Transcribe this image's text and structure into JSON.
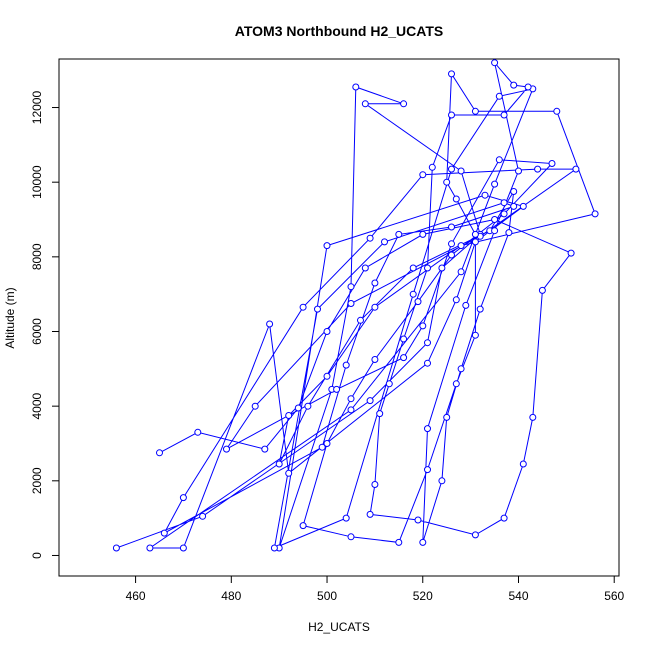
{
  "chart_data": {
    "type": "line",
    "title": "ATOM3 Northbound H2_UCATS",
    "xlabel": "H2_UCATS",
    "ylabel": "Altitude (m)",
    "xlim": [
      444,
      561
    ],
    "ylim": [
      -550,
      13300
    ],
    "xticks": [
      460,
      480,
      500,
      520,
      540,
      560
    ],
    "yticks": [
      0,
      2000,
      4000,
      6000,
      8000,
      10000,
      12000
    ],
    "grid": false,
    "legend": "none",
    "colors": {
      "series": "#0000ff",
      "frame": "#000000"
    },
    "series": [
      {
        "marker": "open-circle",
        "points": [
          [
            456,
            200
          ],
          [
            474,
            1050
          ],
          [
            509,
            4150
          ],
          [
            521,
            5700
          ],
          [
            524,
            7700
          ],
          [
            532,
            8600
          ],
          [
            528,
            10300
          ],
          [
            508,
            12100
          ],
          [
            516,
            12100
          ],
          [
            506,
            12550
          ],
          [
            505,
            7200
          ],
          [
            501,
            4450
          ],
          [
            490,
            200
          ],
          [
            500,
            8300
          ],
          [
            533,
            9650
          ],
          [
            541,
            9350
          ],
          [
            531,
            8400
          ],
          [
            527,
            6850
          ],
          [
            521,
            5150
          ],
          [
            492,
            2200
          ],
          [
            488,
            6200
          ],
          [
            470,
            200
          ],
          [
            463,
            200
          ],
          [
            505,
            3900
          ],
          [
            528,
            7600
          ],
          [
            535,
            9950
          ],
          [
            543,
            12500
          ],
          [
            536,
            12300
          ],
          [
            526,
            10350
          ],
          [
            518,
            7000
          ],
          [
            504,
            1000
          ],
          [
            489,
            200
          ],
          [
            498,
            6600
          ],
          [
            512,
            8400
          ],
          [
            537,
            9450
          ],
          [
            539,
            9350
          ],
          [
            526,
            8800
          ],
          [
            515,
            8600
          ],
          [
            510,
            7300
          ],
          [
            504,
            5100
          ],
          [
            499,
            2900
          ],
          [
            466,
            600
          ],
          [
            470,
            1550
          ],
          [
            495,
            6650
          ],
          [
            509,
            8500
          ],
          [
            520,
            10200
          ],
          [
            544,
            10350
          ],
          [
            552,
            10350
          ],
          [
            532,
            8550
          ],
          [
            505,
            6750
          ],
          [
            485,
            4000
          ],
          [
            479,
            2850
          ],
          [
            502,
            4450
          ],
          [
            516,
            5300
          ],
          [
            520,
            6150
          ],
          [
            526,
            8350
          ],
          [
            536,
            10600
          ],
          [
            547,
            10500
          ],
          [
            537,
            9150
          ],
          [
            526,
            8050
          ],
          [
            519,
            6800
          ],
          [
            510,
            5250
          ],
          [
            505,
            4200
          ],
          [
            500,
            3000
          ],
          [
            495,
            800
          ],
          [
            505,
            500
          ],
          [
            515,
            350
          ],
          [
            521,
            2300
          ],
          [
            527,
            4600
          ],
          [
            531,
            5900
          ],
          [
            531,
            8600
          ],
          [
            527,
            9550
          ],
          [
            525,
            10000
          ],
          [
            526,
            12900
          ],
          [
            531,
            11900
          ],
          [
            548,
            11900
          ],
          [
            556,
            9150
          ],
          [
            528,
            8300
          ],
          [
            510,
            6650
          ],
          [
            500,
            4800
          ],
          [
            492,
            3750
          ],
          [
            490,
            2450
          ],
          [
            496,
            4000
          ],
          [
            507,
            6300
          ],
          [
            518,
            7700
          ],
          [
            534,
            8700
          ],
          [
            539,
            9750
          ],
          [
            538,
            8650
          ],
          [
            532,
            6600
          ],
          [
            528,
            5000
          ],
          [
            525,
            3700
          ],
          [
            524,
            2000
          ],
          [
            520,
            350
          ],
          [
            521,
            3400
          ],
          [
            529,
            6700
          ],
          [
            535,
            8700
          ],
          [
            540,
            10300
          ],
          [
            535,
            13200
          ],
          [
            539,
            12600
          ],
          [
            542,
            12550
          ],
          [
            537,
            11800
          ],
          [
            526,
            11800
          ],
          [
            522,
            10400
          ],
          [
            521,
            7700
          ],
          [
            516,
            5800
          ],
          [
            513,
            4600
          ],
          [
            511,
            3800
          ],
          [
            510,
            1900
          ],
          [
            509,
            1100
          ],
          [
            519,
            950
          ],
          [
            531,
            550
          ],
          [
            537,
            1000
          ],
          [
            541,
            2450
          ],
          [
            543,
            3700
          ],
          [
            545,
            7100
          ],
          [
            551,
            8100
          ],
          [
            535,
            9000
          ],
          [
            520,
            8600
          ],
          [
            508,
            7700
          ],
          [
            500,
            6000
          ],
          [
            494,
            3950
          ],
          [
            487,
            2850
          ],
          [
            473,
            3300
          ],
          [
            465,
            2750
          ]
        ]
      }
    ]
  }
}
